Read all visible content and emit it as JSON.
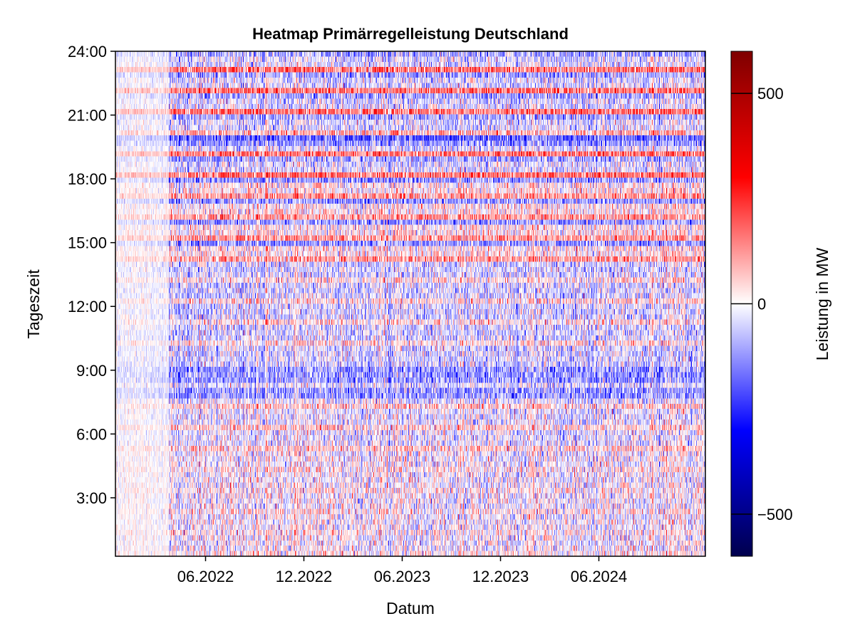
{
  "chart_data": {
    "type": "heatmap",
    "title": "Heatmap Primärregelleistung Deutschland",
    "xlabel": "Datum",
    "ylabel": "Tageszeit",
    "colorbar_label": "Leistung in MW",
    "x_range": [
      "2022-01",
      "2024-12"
    ],
    "x_ticks": [
      "06.2022",
      "12.2022",
      "06.2023",
      "12.2023",
      "06.2024"
    ],
    "y_range_hours": [
      0.25,
      24
    ],
    "y_ticks": [
      "3:00",
      "6:00",
      "9:00",
      "12:00",
      "15:00",
      "18:00",
      "21:00",
      "24:00"
    ],
    "color_range": [
      -600,
      600
    ],
    "colorbar_ticks": [
      "−500",
      "0",
      "500"
    ],
    "colormap": [
      "#00004d",
      "#0000ff",
      "#ffffff",
      "#ff0000",
      "#7f0000"
    ],
    "grid": false
  }
}
